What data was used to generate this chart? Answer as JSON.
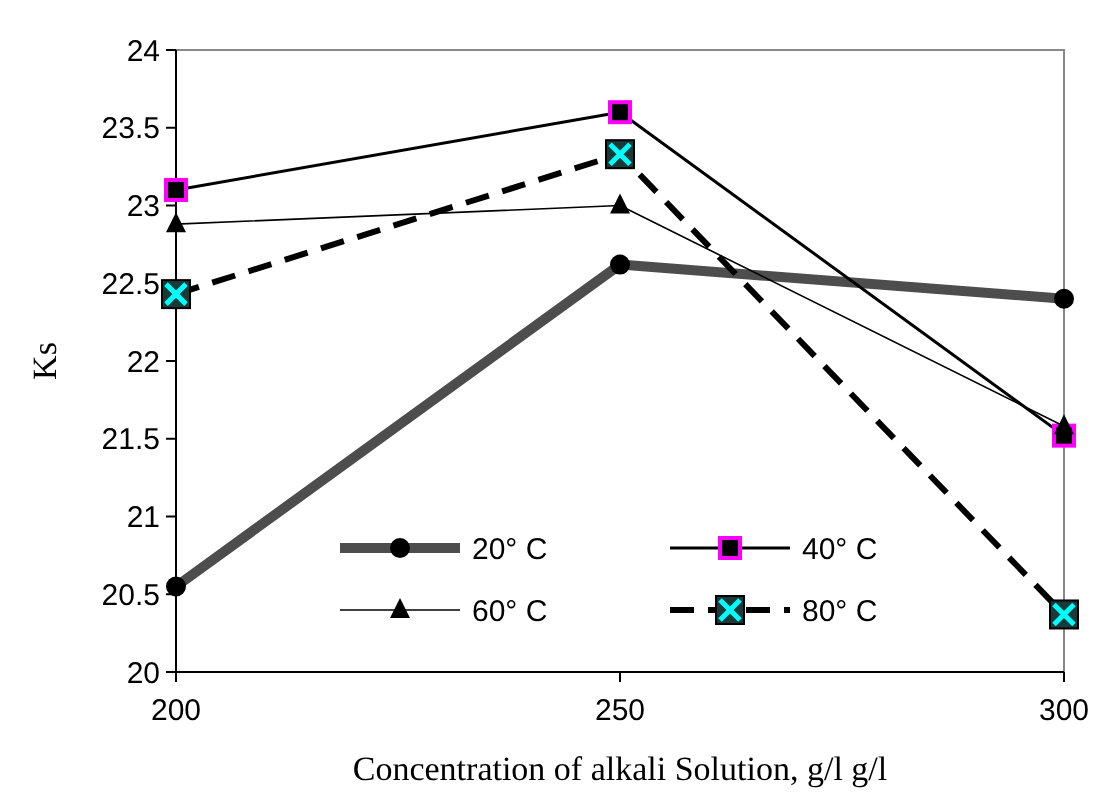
{
  "chart_data": {
    "type": "line",
    "x": [
      200,
      250,
      300
    ],
    "xlim": [
      200,
      300
    ],
    "xticks": [
      200,
      250,
      300
    ],
    "ylim": [
      20,
      24
    ],
    "yticks": [
      20,
      20.5,
      21,
      21.5,
      22,
      22.5,
      23,
      23.5,
      24
    ],
    "xlabel": "Concentration of alkali Solution, g/l g/l",
    "ylabel": "Ks",
    "grid": false,
    "legend": "bottom",
    "series": [
      {
        "name": "20° C",
        "color": "#4d4d4d",
        "values": [
          20.55,
          22.62,
          22.4
        ],
        "marker": "circle",
        "line_style": "solid"
      },
      {
        "name": "40° C",
        "color": "#000000",
        "values": [
          23.1,
          23.6,
          21.52
        ],
        "marker": "square",
        "line_style": "solid"
      },
      {
        "name": "60° C",
        "color": "#000000",
        "values": [
          22.88,
          23.0,
          21.58
        ],
        "marker": "triangle",
        "line_style": "solid"
      },
      {
        "name": "80° C",
        "color": "#000000",
        "values": [
          22.43,
          23.33,
          20.37
        ],
        "marker": "square",
        "line_style": "dashed"
      }
    ]
  }
}
